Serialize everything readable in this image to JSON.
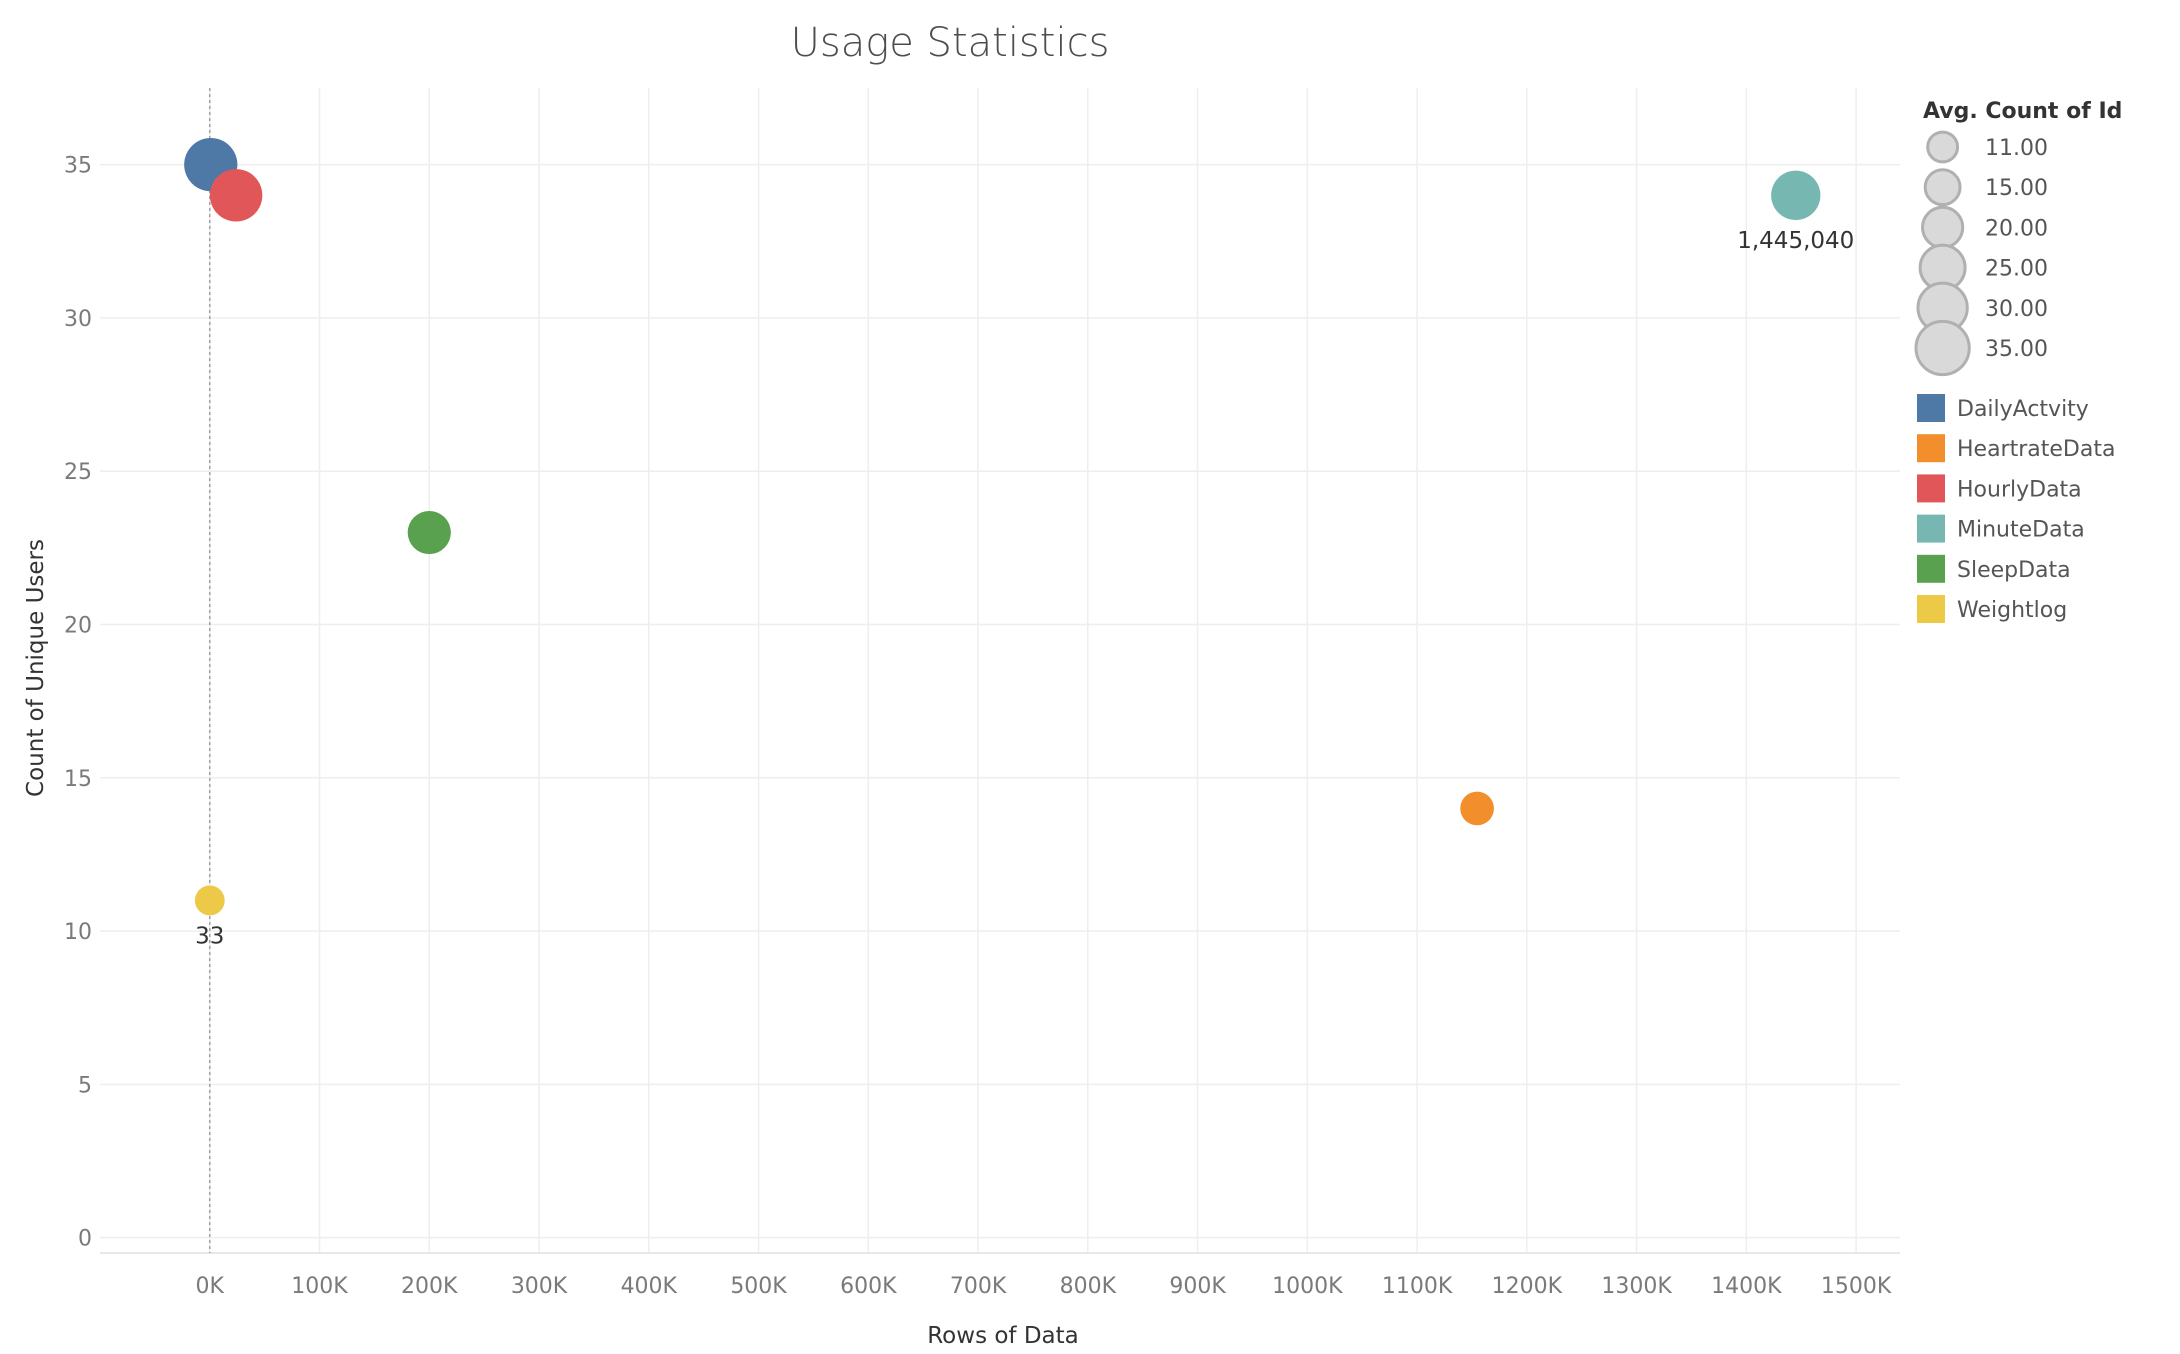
{
  "chart_data": {
    "type": "scatter",
    "title": "Usage Statistics",
    "xlabel": "Rows of Data",
    "ylabel": "Count of Unique Users",
    "xlim": [
      -100000,
      1540000
    ],
    "ylim": [
      -0.5,
      37.5
    ],
    "x_ticks": [
      0,
      100000,
      200000,
      300000,
      400000,
      500000,
      600000,
      700000,
      800000,
      900000,
      1000000,
      1100000,
      1200000,
      1300000,
      1400000,
      1500000
    ],
    "x_tick_labels": [
      "0K",
      "100K",
      "200K",
      "300K",
      "400K",
      "500K",
      "600K",
      "700K",
      "800K",
      "900K",
      "1000K",
      "1100K",
      "1200K",
      "1300K",
      "1400K",
      "1500K"
    ],
    "y_ticks": [
      0,
      5,
      10,
      15,
      20,
      25,
      30,
      35
    ],
    "y_tick_labels": [
      "0",
      "5",
      "10",
      "15",
      "20",
      "25",
      "30",
      "35"
    ],
    "grid": true,
    "reference_line_x": 0,
    "size_legend": {
      "title": "Avg. Count of Id",
      "entries": [
        {
          "value": 11,
          "label": "11.00"
        },
        {
          "value": 15,
          "label": "15.00"
        },
        {
          "value": 20,
          "label": "20.00"
        },
        {
          "value": 25,
          "label": "25.00"
        },
        {
          "value": 30,
          "label": "30.00"
        },
        {
          "value": 35,
          "label": "35.00"
        }
      ]
    },
    "legend_placement": "right",
    "series": [
      {
        "name": "DailyActvity",
        "color": "#4e79a7",
        "x": 940,
        "y": 35,
        "size": 35,
        "label": ""
      },
      {
        "name": "HeartrateData",
        "color": "#f28e2b",
        "x": 1154681,
        "y": 14,
        "size": 14,
        "label": ""
      },
      {
        "name": "HourlyData",
        "color": "#e15759",
        "x": 24000,
        "y": 34,
        "size": 34,
        "label": ""
      },
      {
        "name": "MinuteData",
        "color": "#76b7b2",
        "x": 1445040,
        "y": 34,
        "size": 30,
        "label": "1,445,040"
      },
      {
        "name": "SleepData",
        "color": "#59a14f",
        "x": 200000,
        "y": 23,
        "size": 23,
        "label": ""
      },
      {
        "name": "Weightlog",
        "color": "#edc948",
        "x": 33,
        "y": 11,
        "size": 11,
        "label": "33"
      }
    ]
  }
}
